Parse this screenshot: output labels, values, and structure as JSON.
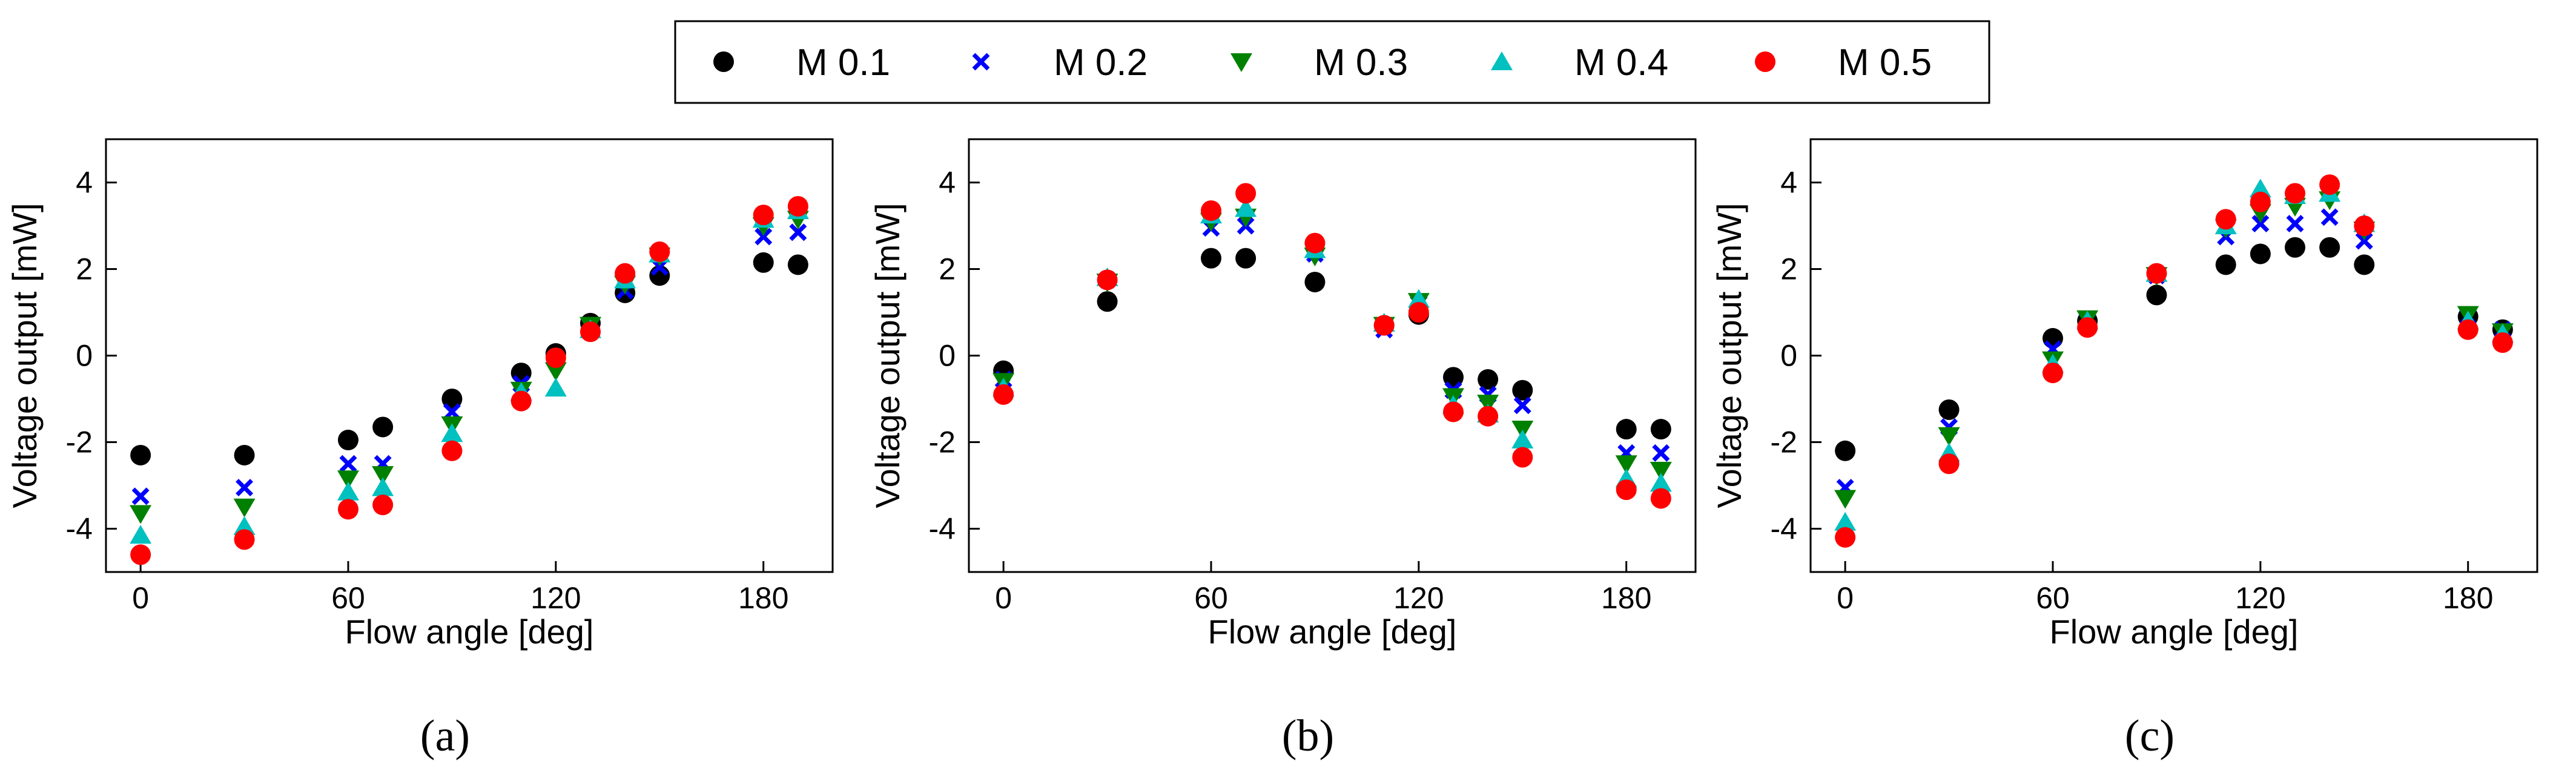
{
  "legend": [
    {
      "name": "M 0.1",
      "marker": "circle",
      "color": "#000000"
    },
    {
      "name": "M 0.2",
      "marker": "x",
      "color": "#0000ff"
    },
    {
      "name": "M 0.3",
      "marker": "triangle-down",
      "color": "#008000"
    },
    {
      "name": "M 0.4",
      "marker": "triangle-up",
      "color": "#00c0c0"
    },
    {
      "name": "M 0.5",
      "marker": "circle",
      "color": "#ff0000"
    }
  ],
  "chart_data": [
    {
      "type": "scatter",
      "panel_label": "(a)",
      "xlabel": "Flow angle [deg]",
      "ylabel": "Voltage output [mW]",
      "xlim": [
        -10,
        200
      ],
      "ylim": [
        -5,
        5
      ],
      "xticks": [
        0,
        60,
        120,
        180
      ],
      "yticks": [
        -4,
        -2,
        0,
        2,
        4
      ],
      "x": [
        0,
        30,
        60,
        70,
        90,
        110,
        120,
        130,
        140,
        150,
        180,
        190
      ],
      "series": [
        {
          "name": "M 0.1",
          "values": [
            -2.3,
            -2.3,
            -1.95,
            -1.65,
            -1.0,
            -0.4,
            0.05,
            0.75,
            1.45,
            1.85,
            2.15,
            2.1
          ]
        },
        {
          "name": "M 0.2",
          "values": [
            -3.25,
            -3.05,
            -2.5,
            -2.5,
            -1.3,
            -0.65,
            -0.05,
            0.7,
            1.5,
            2.05,
            2.75,
            2.85
          ]
        },
        {
          "name": "M 0.3",
          "values": [
            -3.65,
            -3.5,
            -2.85,
            -2.75,
            -1.6,
            -0.8,
            -0.35,
            0.7,
            1.65,
            2.3,
            3.0,
            3.15
          ]
        },
        {
          "name": "M 0.4",
          "values": [
            -4.15,
            -3.95,
            -3.15,
            -3.05,
            -1.8,
            -0.85,
            -0.75,
            0.6,
            1.75,
            2.35,
            3.15,
            3.35
          ]
        },
        {
          "name": "M 0.5",
          "values": [
            -4.6,
            -4.25,
            -3.55,
            -3.45,
            -2.2,
            -1.05,
            -0.05,
            0.55,
            1.9,
            2.4,
            3.25,
            3.45
          ]
        }
      ]
    },
    {
      "type": "scatter",
      "panel_label": "(b)",
      "xlabel": "Flow angle [deg]",
      "ylabel": "Voltage output [mW]",
      "xlim": [
        -10,
        200
      ],
      "ylim": [
        -5,
        5
      ],
      "xticks": [
        0,
        60,
        120,
        180
      ],
      "yticks": [
        -4,
        -2,
        0,
        2,
        4
      ],
      "x": [
        0,
        30,
        60,
        70,
        90,
        110,
        120,
        130,
        140,
        150,
        180,
        190
      ],
      "series": [
        {
          "name": "M 0.1",
          "values": [
            -0.35,
            1.25,
            2.25,
            2.25,
            1.7,
            0.7,
            0.95,
            -0.5,
            -0.55,
            -0.8,
            -1.7,
            -1.7
          ]
        },
        {
          "name": "M 0.2",
          "values": [
            -0.55,
            1.75,
            2.95,
            3.0,
            2.35,
            0.6,
            1.2,
            -0.8,
            -0.9,
            -1.15,
            -2.25,
            -2.25
          ]
        },
        {
          "name": "M 0.3",
          "values": [
            -0.6,
            1.7,
            3.1,
            3.2,
            2.3,
            0.7,
            1.25,
            -0.95,
            -1.1,
            -1.7,
            -2.5,
            -2.65
          ]
        },
        {
          "name": "M 0.4",
          "values": [
            -0.75,
            1.8,
            3.25,
            3.4,
            2.45,
            0.75,
            1.3,
            -1.15,
            -1.35,
            -1.95,
            -2.85,
            -2.95
          ]
        },
        {
          "name": "M 0.5",
          "values": [
            -0.9,
            1.75,
            3.35,
            3.75,
            2.6,
            0.7,
            1.0,
            -1.3,
            -1.4,
            -2.35,
            -3.1,
            -3.3
          ]
        }
      ]
    },
    {
      "type": "scatter",
      "panel_label": "(c)",
      "xlabel": "Flow angle [deg]",
      "ylabel": "Voltage output [mW]",
      "xlim": [
        -10,
        200
      ],
      "ylim": [
        -5,
        5
      ],
      "xticks": [
        0,
        60,
        120,
        180
      ],
      "yticks": [
        -4,
        -2,
        0,
        2,
        4
      ],
      "x": [
        0,
        30,
        60,
        70,
        90,
        110,
        120,
        130,
        140,
        150,
        180,
        190
      ],
      "series": [
        {
          "name": "M 0.1",
          "values": [
            -2.2,
            -1.25,
            0.4,
            0.8,
            1.4,
            2.1,
            2.35,
            2.5,
            2.5,
            2.1,
            0.9,
            0.6
          ]
        },
        {
          "name": "M 0.2",
          "values": [
            -3.05,
            -1.65,
            0.15,
            0.8,
            1.85,
            2.75,
            3.05,
            3.05,
            3.2,
            2.65,
            0.9,
            0.6
          ]
        },
        {
          "name": "M 0.3",
          "values": [
            -3.3,
            -1.85,
            -0.1,
            0.85,
            1.85,
            2.95,
            3.3,
            3.45,
            3.6,
            2.9,
            0.95,
            0.55
          ]
        },
        {
          "name": "M 0.4",
          "values": [
            -3.85,
            -2.25,
            -0.2,
            0.8,
            1.9,
            3.0,
            3.85,
            3.7,
            3.75,
            3.05,
            0.8,
            0.5
          ]
        },
        {
          "name": "M 0.5",
          "values": [
            -4.2,
            -2.5,
            -0.4,
            0.65,
            1.9,
            3.15,
            3.55,
            3.75,
            3.95,
            3.0,
            0.6,
            0.3
          ]
        }
      ]
    }
  ]
}
